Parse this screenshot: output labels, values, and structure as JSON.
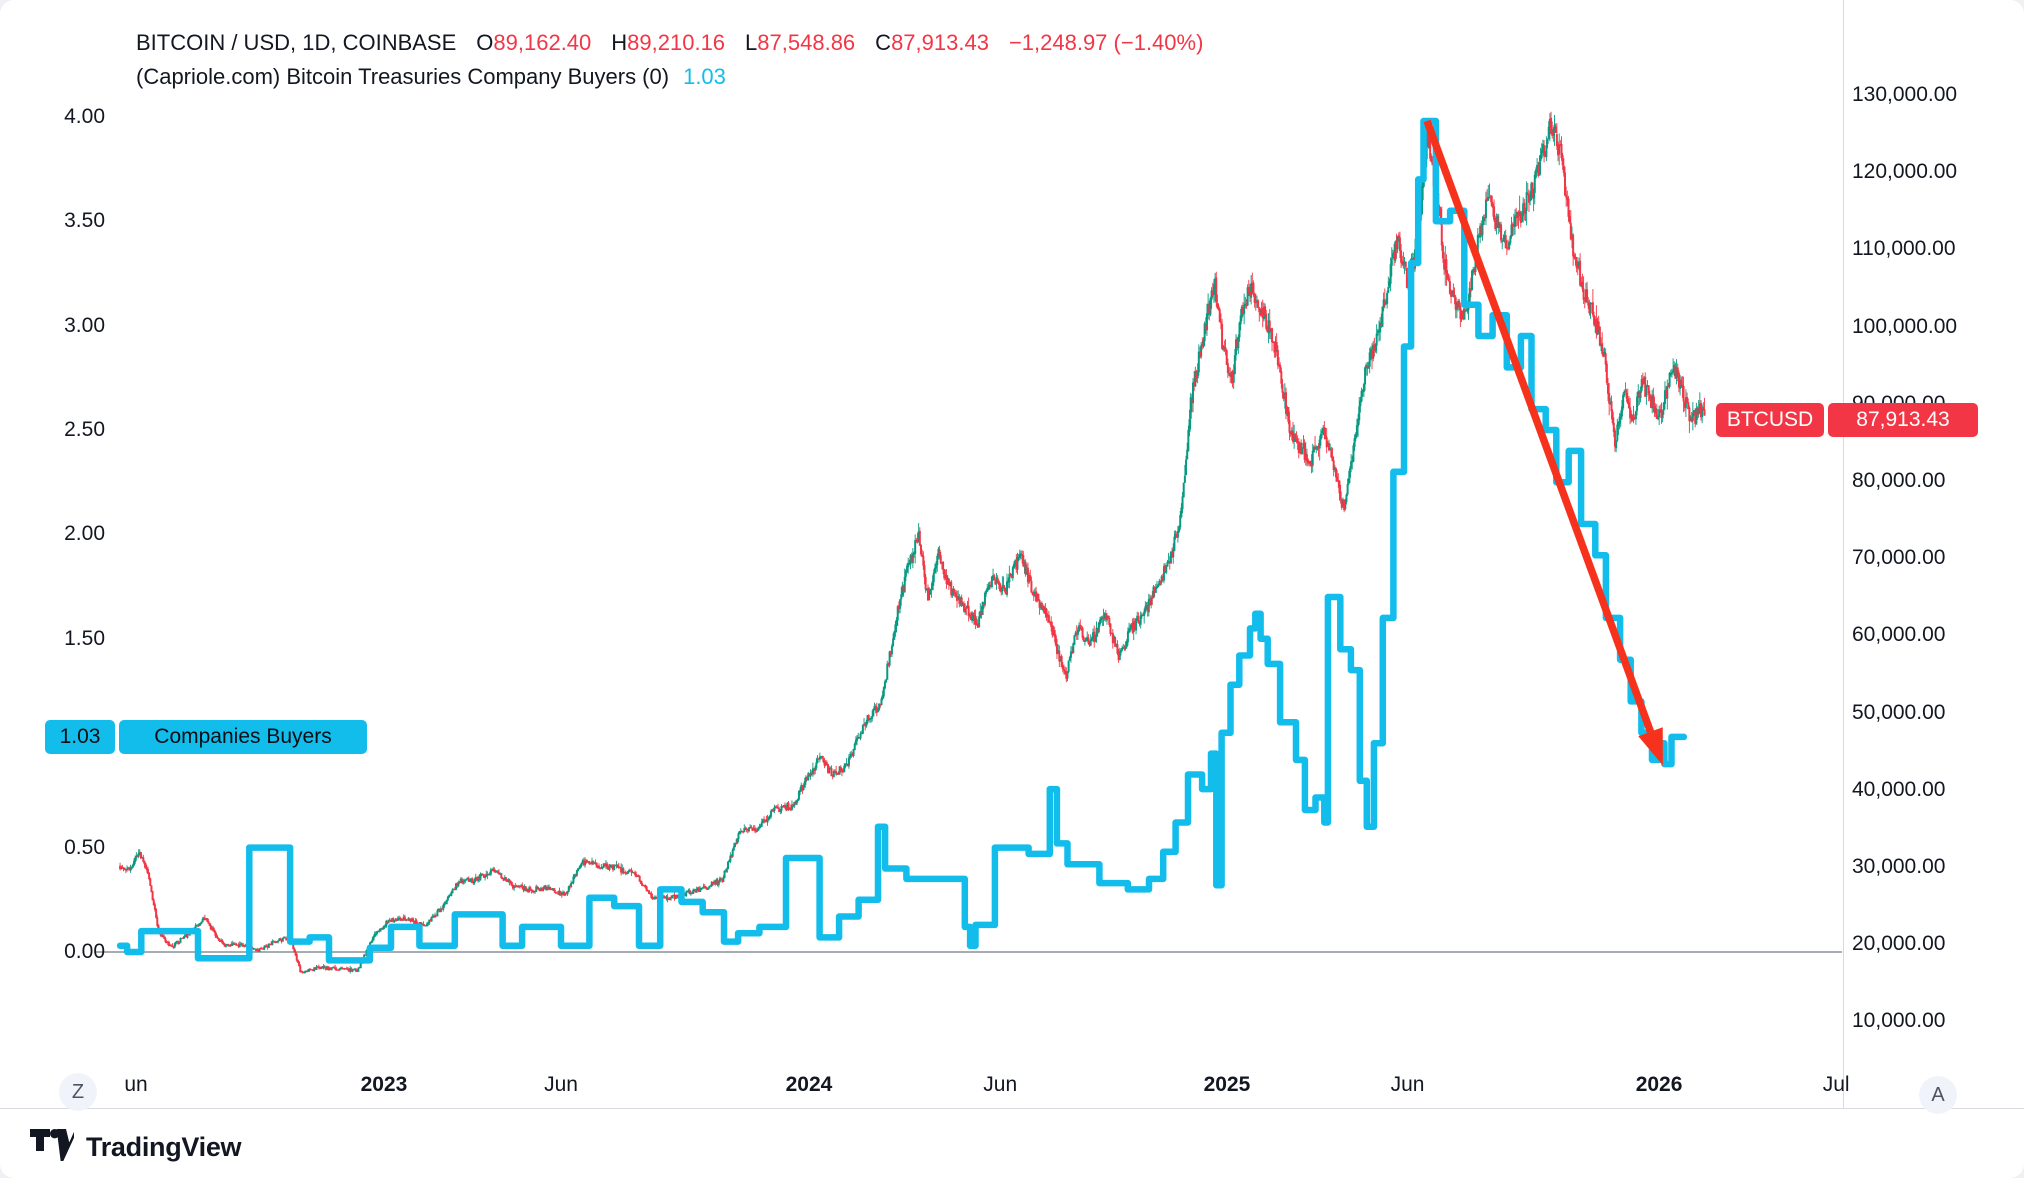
{
  "header": {
    "symbol_title": "BITCOIN / USD, 1D, COINBASE",
    "ohlc": {
      "o_label": "O",
      "o": "89,162.40",
      "h_label": "H",
      "h": "89,210.16",
      "l_label": "L",
      "l": "87,548.86",
      "c_label": "C",
      "c": "87,913.43",
      "change": "−1,248.97 (−1.40%)"
    },
    "indicator_title": "(Capriole.com) Bitcoin Treasuries Company Buyers (0)",
    "indicator_value": "1.03"
  },
  "left_axis": {
    "badge_value": "1.03",
    "badge_label": "Companies Buyers",
    "ticks": [
      {
        "label": "4.00",
        "v": 4.0
      },
      {
        "label": "3.50",
        "v": 3.5
      },
      {
        "label": "3.00",
        "v": 3.0
      },
      {
        "label": "2.50",
        "v": 2.5
      },
      {
        "label": "2.00",
        "v": 2.0
      },
      {
        "label": "1.50",
        "v": 1.5
      },
      {
        "label": "0.50",
        "v": 0.5
      },
      {
        "label": "0.00",
        "v": 0.0
      }
    ]
  },
  "right_axis": {
    "badge_symbol": "BTCUSD",
    "badge_value": "87,913.43",
    "badge_price": 87.913,
    "ticks": [
      {
        "label": "130,000.00",
        "p": 130
      },
      {
        "label": "120,000.00",
        "p": 120
      },
      {
        "label": "110,000.00",
        "p": 110
      },
      {
        "label": "100,000.00",
        "p": 100
      },
      {
        "label": "90,000.00",
        "p": 90
      },
      {
        "label": "80,000.00",
        "p": 80
      },
      {
        "label": "70,000.00",
        "p": 70
      },
      {
        "label": "60,000.00",
        "p": 60
      },
      {
        "label": "50,000.00",
        "p": 50
      },
      {
        "label": "40,000.00",
        "p": 40
      },
      {
        "label": "30,000.00",
        "p": 30
      },
      {
        "label": "20,000.00",
        "p": 20
      },
      {
        "label": "10,000.00",
        "p": 10
      }
    ]
  },
  "time_axis": {
    "zoom_out_button": "Z",
    "auto_button": "A",
    "ticks": [
      {
        "label": "un",
        "t": 0,
        "bold": false
      },
      {
        "label": "2023",
        "t": 7,
        "bold": true
      },
      {
        "label": "Jun",
        "t": 12,
        "bold": false
      },
      {
        "label": "2024",
        "t": 19,
        "bold": true
      },
      {
        "label": "Jun",
        "t": 24.4,
        "bold": false
      },
      {
        "label": "2025",
        "t": 30.8,
        "bold": true
      },
      {
        "label": "Jun",
        "t": 35.9,
        "bold": false
      },
      {
        "label": "2026",
        "t": 43,
        "bold": true
      },
      {
        "label": "Jul",
        "t": 48,
        "bold": false
      }
    ]
  },
  "footer": {
    "brand": "TradingView"
  },
  "colors": {
    "up": "#089981",
    "down": "#f23645",
    "indicator": "#12bdec",
    "arrow": "#f7321c",
    "zero_line": "#8a8f98",
    "text": "#131722",
    "badge_red": "#f23645"
  },
  "chart_data": {
    "type": "candlestick+line",
    "note": "t = months since 2022-06-01; prices in thousands of USD; values read from chart, approximate",
    "price_series": {
      "name": "BTCUSD daily candles",
      "unit": "USD x1000",
      "keypoints": [
        [
          -0.45,
          30.2
        ],
        [
          -0.2,
          29.6
        ],
        [
          0.1,
          31.8
        ],
        [
          0.35,
          29.0
        ],
        [
          0.65,
          21.5
        ],
        [
          1.0,
          19.6
        ],
        [
          1.45,
          21.3
        ],
        [
          1.95,
          23.3
        ],
        [
          2.45,
          20.0
        ],
        [
          2.95,
          19.9
        ],
        [
          3.45,
          19.2
        ],
        [
          3.95,
          20.4
        ],
        [
          4.35,
          20.9
        ],
        [
          4.65,
          16.4
        ],
        [
          5.2,
          17.0
        ],
        [
          5.8,
          16.8
        ],
        [
          6.25,
          16.6
        ],
        [
          6.7,
          21.0
        ],
        [
          7.15,
          23.2
        ],
        [
          7.65,
          23.4
        ],
        [
          8.15,
          22.3
        ],
        [
          8.65,
          24.9
        ],
        [
          9.1,
          28.1
        ],
        [
          9.6,
          28.4
        ],
        [
          10.1,
          29.8
        ],
        [
          10.6,
          27.7
        ],
        [
          11.1,
          27.1
        ],
        [
          11.6,
          27.3
        ],
        [
          12.1,
          26.4
        ],
        [
          12.6,
          30.6
        ],
        [
          13.1,
          30.2
        ],
        [
          13.6,
          29.9
        ],
        [
          14.1,
          29.1
        ],
        [
          14.6,
          26.0
        ],
        [
          15.1,
          26.1
        ],
        [
          15.6,
          26.8
        ],
        [
          16.1,
          27.4
        ],
        [
          16.55,
          28.4
        ],
        [
          17.05,
          34.5
        ],
        [
          17.55,
          35.0
        ],
        [
          18.05,
          37.5
        ],
        [
          18.55,
          38.0
        ],
        [
          19.05,
          42.6
        ],
        [
          19.35,
          44.0
        ],
        [
          19.65,
          42.0
        ],
        [
          20.05,
          43.0
        ],
        [
          20.55,
          48.5
        ],
        [
          21.05,
          51.5
        ],
        [
          21.45,
          62.0
        ],
        [
          21.75,
          68.0
        ],
        [
          22.1,
          73.0
        ],
        [
          22.35,
          64.5
        ],
        [
          22.65,
          70.5
        ],
        [
          22.95,
          66.5
        ],
        [
          23.35,
          64.0
        ],
        [
          23.75,
          61.5
        ],
        [
          24.15,
          67.5
        ],
        [
          24.55,
          66.0
        ],
        [
          24.95,
          70.5
        ],
        [
          25.35,
          65.5
        ],
        [
          25.75,
          62.8
        ],
        [
          26.05,
          57.5
        ],
        [
          26.25,
          54.5
        ],
        [
          26.55,
          61.0
        ],
        [
          26.95,
          59.0
        ],
        [
          27.35,
          63.0
        ],
        [
          27.75,
          57.3
        ],
        [
          28.1,
          60.8
        ],
        [
          28.5,
          63.3
        ],
        [
          28.9,
          67.3
        ],
        [
          29.2,
          69.9
        ],
        [
          29.5,
          76.0
        ],
        [
          29.8,
          91.0
        ],
        [
          30.1,
          98.0
        ],
        [
          30.45,
          106.0
        ],
        [
          30.7,
          97.0
        ],
        [
          30.95,
          93.5
        ],
        [
          31.2,
          102.3
        ],
        [
          31.5,
          105.0
        ],
        [
          31.8,
          102.1
        ],
        [
          32.2,
          96.6
        ],
        [
          32.6,
          86.0
        ],
        [
          32.9,
          84.3
        ],
        [
          33.2,
          82.8
        ],
        [
          33.5,
          86.9
        ],
        [
          33.8,
          82.5
        ],
        [
          34.1,
          76.3
        ],
        [
          34.4,
          85.2
        ],
        [
          34.7,
          94.2
        ],
        [
          34.95,
          97.0
        ],
        [
          35.3,
          103.8
        ],
        [
          35.6,
          111.7
        ],
        [
          35.9,
          105.6
        ],
        [
          36.15,
          110.0
        ],
        [
          36.45,
          124.5
        ],
        [
          36.7,
          118.0
        ],
        [
          36.95,
          108.0
        ],
        [
          37.25,
          103.0
        ],
        [
          37.55,
          101.5
        ],
        [
          37.85,
          110.0
        ],
        [
          38.15,
          116.5
        ],
        [
          38.45,
          113.0
        ],
        [
          38.75,
          111.0
        ],
        [
          39.05,
          114.5
        ],
        [
          39.35,
          117.0
        ],
        [
          39.65,
          121.0
        ],
        [
          39.95,
          126.3
        ],
        [
          40.25,
          121.5
        ],
        [
          40.55,
          110.5
        ],
        [
          40.85,
          105.0
        ],
        [
          41.15,
          101.5
        ],
        [
          41.45,
          96.5
        ],
        [
          41.75,
          84.8
        ],
        [
          42.0,
          91.5
        ],
        [
          42.25,
          87.3
        ],
        [
          42.5,
          93.0
        ],
        [
          42.75,
          90.5
        ],
        [
          43.05,
          88.0
        ],
        [
          43.35,
          95.2
        ],
        [
          43.65,
          92.0
        ],
        [
          43.9,
          87.5
        ],
        [
          44.15,
          89.5
        ],
        [
          44.3,
          87.9
        ]
      ],
      "last_close": 87.913
    },
    "indicator_series": {
      "name": "Companies Buyers",
      "style": "step",
      "keypoints": [
        [
          -0.45,
          0.03
        ],
        [
          -0.25,
          0.0
        ],
        [
          0.15,
          0.1
        ],
        [
          1.75,
          -0.03
        ],
        [
          3.2,
          0.5
        ],
        [
          4.35,
          0.05
        ],
        [
          4.9,
          0.07
        ],
        [
          5.45,
          -0.04
        ],
        [
          6.6,
          0.02
        ],
        [
          7.2,
          0.12
        ],
        [
          8.0,
          0.03
        ],
        [
          9.0,
          0.18
        ],
        [
          10.35,
          0.03
        ],
        [
          10.9,
          0.12
        ],
        [
          12.0,
          0.03
        ],
        [
          12.8,
          0.26
        ],
        [
          13.5,
          0.22
        ],
        [
          14.2,
          0.03
        ],
        [
          14.8,
          0.3
        ],
        [
          15.4,
          0.24
        ],
        [
          16.0,
          0.19
        ],
        [
          16.6,
          0.05
        ],
        [
          17.0,
          0.09
        ],
        [
          17.6,
          0.12
        ],
        [
          18.35,
          0.45
        ],
        [
          19.3,
          0.07
        ],
        [
          19.85,
          0.17
        ],
        [
          20.4,
          0.25
        ],
        [
          20.95,
          0.6
        ],
        [
          21.15,
          0.4
        ],
        [
          21.75,
          0.35
        ],
        [
          23.4,
          0.12
        ],
        [
          23.55,
          0.03
        ],
        [
          23.7,
          0.13
        ],
        [
          24.25,
          0.5
        ],
        [
          25.2,
          0.47
        ],
        [
          25.8,
          0.78
        ],
        [
          26.0,
          0.52
        ],
        [
          26.3,
          0.42
        ],
        [
          27.2,
          0.33
        ],
        [
          28.0,
          0.3
        ],
        [
          28.6,
          0.35
        ],
        [
          29.0,
          0.48
        ],
        [
          29.35,
          0.62
        ],
        [
          29.7,
          0.85
        ],
        [
          30.1,
          0.78
        ],
        [
          30.35,
          0.95
        ],
        [
          30.5,
          0.32
        ],
        [
          30.65,
          1.05
        ],
        [
          30.9,
          1.28
        ],
        [
          31.15,
          1.42
        ],
        [
          31.45,
          1.55
        ],
        [
          31.6,
          1.62
        ],
        [
          31.75,
          1.5
        ],
        [
          31.95,
          1.38
        ],
        [
          32.3,
          1.1
        ],
        [
          32.75,
          0.92
        ],
        [
          33.0,
          0.68
        ],
        [
          33.3,
          0.74
        ],
        [
          33.55,
          0.62
        ],
        [
          33.65,
          1.7
        ],
        [
          34.0,
          1.45
        ],
        [
          34.3,
          1.35
        ],
        [
          34.55,
          0.82
        ],
        [
          34.75,
          0.6
        ],
        [
          34.95,
          1.0
        ],
        [
          35.2,
          1.6
        ],
        [
          35.5,
          2.3
        ],
        [
          35.8,
          2.9
        ],
        [
          36.0,
          3.3
        ],
        [
          36.2,
          3.7
        ],
        [
          36.35,
          3.98
        ],
        [
          36.7,
          3.5
        ],
        [
          37.1,
          3.55
        ],
        [
          37.5,
          3.1
        ],
        [
          37.9,
          2.95
        ],
        [
          38.3,
          3.05
        ],
        [
          38.7,
          2.8
        ],
        [
          39.1,
          2.95
        ],
        [
          39.4,
          2.6
        ],
        [
          39.8,
          2.5
        ],
        [
          40.1,
          2.25
        ],
        [
          40.45,
          2.4
        ],
        [
          40.8,
          2.05
        ],
        [
          41.2,
          1.9
        ],
        [
          41.5,
          1.6
        ],
        [
          41.9,
          1.4
        ],
        [
          42.2,
          1.2
        ],
        [
          42.5,
          1.05
        ],
        [
          42.8,
          0.92
        ],
        [
          43.0,
          1.0
        ],
        [
          43.15,
          0.9
        ],
        [
          43.35,
          1.03
        ],
        [
          43.7,
          1.03
        ]
      ],
      "last_value": 1.03
    },
    "annotation_arrow": {
      "type": "trend-arrow",
      "from": {
        "t": 36.45,
        "v": 3.98
      },
      "to": {
        "t": 43.05,
        "v": 0.92
      }
    },
    "axes": {
      "left_scale": {
        "name": "Companies Buyers",
        "visible_range": [
          -0.52,
          4.56
        ],
        "grid": false
      },
      "right_scale": {
        "name": "BTCUSD",
        "visible_range_usd": [
          5000,
          142500
        ],
        "grid": false
      },
      "time_scale": {
        "start": "2022-05",
        "end": "2026-07"
      },
      "zero_line_value": 0.0
    }
  }
}
